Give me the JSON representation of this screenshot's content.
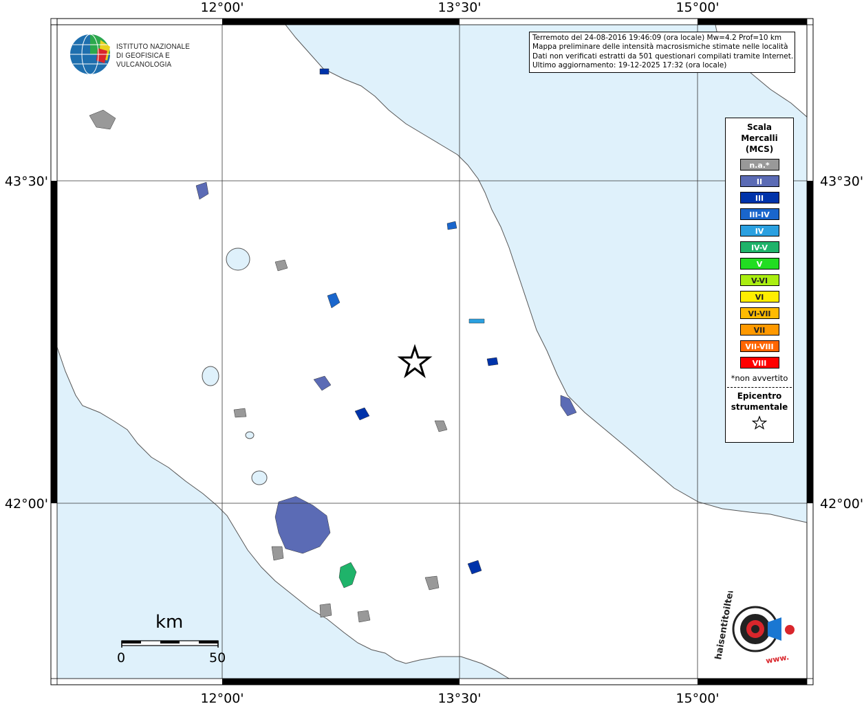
{
  "map": {
    "lon_labels": [
      "12°00'",
      "13°30'",
      "15°00'"
    ],
    "lat_labels": [
      "43°30'",
      "42°00'"
    ],
    "sea_color": "#dff1fb",
    "land_color": "#ffffff"
  },
  "info": {
    "line1": "Terremoto del 24-08-2016 19:46:09 (ora locale) Mw=4.2 Prof=10 km",
    "line2": "Mappa preliminare delle intensità macrosismiche stimate nelle località",
    "line3": "Dati non verificati estratti da 501 questionari compilati tramite Internet.",
    "line4": "Ultimo aggiornamento: 19-12-2025 17:32 (ora locale)"
  },
  "legend": {
    "title_1": "Scala",
    "title_2": "Mercalli",
    "title_3": "(MCS)",
    "classes": [
      {
        "label": "n.a.*",
        "color": "#999999"
      },
      {
        "label": "II",
        "color": "#5b6bb5"
      },
      {
        "label": "III",
        "color": "#0033aa"
      },
      {
        "label": "III-IV",
        "color": "#1a66cc"
      },
      {
        "label": "IV",
        "color": "#2aa0e0"
      },
      {
        "label": "IV-V",
        "color": "#1fb36a"
      },
      {
        "label": "V",
        "color": "#22dd22"
      },
      {
        "label": "V-VI",
        "color": "#aaee11"
      },
      {
        "label": "VI",
        "color": "#ffee00"
      },
      {
        "label": "VI-VII",
        "color": "#ffbb00"
      },
      {
        "label": "VII",
        "color": "#ff9900"
      },
      {
        "label": "VII-VIII",
        "color": "#ff6600"
      },
      {
        "label": "VIII",
        "color": "#ff0000"
      }
    ],
    "note": "*non avvertito",
    "epicenter_1": "Epicentro",
    "epicenter_2": "strumentale"
  },
  "ingv_logo": {
    "line1": "ISTITUTO NAZIONALE",
    "line2": "DI GEOFISICA E VULCANOLOGIA"
  },
  "scale": {
    "unit": "km",
    "min": "0",
    "max": "50"
  },
  "haisentito": {
    "text": "haisentitoilterremoto.it",
    "prefix": "www."
  }
}
